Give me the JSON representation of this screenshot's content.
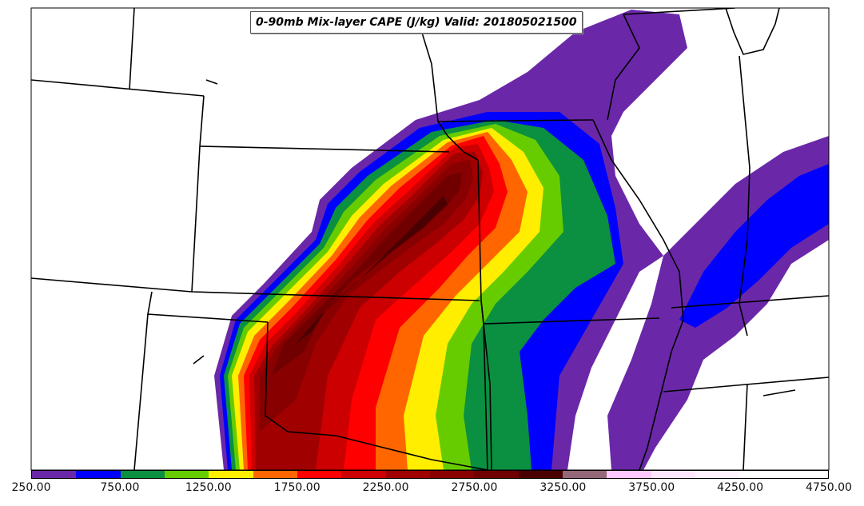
{
  "title": "0-90mb Mix-layer CAPE (J/kg) Valid: 201805021500",
  "colorbar": {
    "tick_labels": [
      "250.00",
      "750.00",
      "1250.00",
      "1750.00",
      "2250.00",
      "2750.00",
      "3250.00",
      "3750.00",
      "4250.00",
      "4750.00"
    ],
    "colors": [
      "#6a28a8",
      "#0000ff",
      "#0a9040",
      "#66cc00",
      "#ffee00",
      "#ff6600",
      "#ff0000",
      "#cc0000",
      "#a00000",
      "#880000",
      "#700000",
      "#4a0000",
      "#946878",
      "#ffc8ff",
      "#ffe6ff",
      "#fff4ff",
      "#ffffff",
      "#ffffff"
    ]
  }
}
